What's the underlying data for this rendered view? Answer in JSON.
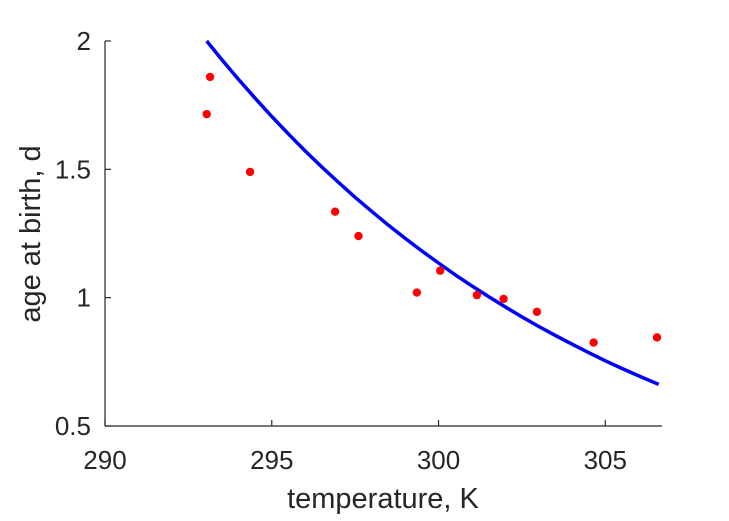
{
  "chart_data": {
    "type": "scatter",
    "title": "",
    "xlabel": "temperature, K",
    "ylabel": "age at birth, d",
    "xlim": [
      290,
      306.7
    ],
    "ylim": [
      0.5,
      2
    ],
    "xticks": [
      290,
      295,
      300,
      305
    ],
    "yticks": [
      0.5,
      1,
      1.5,
      2
    ],
    "xtick_labels": [
      "290",
      "295",
      "300",
      "305"
    ],
    "ytick_labels": [
      "0.5",
      "1",
      "1.5",
      "2"
    ],
    "grid": false,
    "legend": "none",
    "series": [
      {
        "type": "scatter",
        "color": "#ff0000",
        "x": [
          293.05,
          293.15,
          294.35,
          296.9,
          297.6,
          299.35,
          300.05,
          301.15,
          301.95,
          302.95,
          304.65,
          306.55
        ],
        "y": [
          1.715,
          1.86,
          1.49,
          1.335,
          1.24,
          1.02,
          1.105,
          1.01,
          0.995,
          0.945,
          0.825,
          0.845
        ]
      },
      {
        "type": "line",
        "color": "#0000ff",
        "x": [
          293.05,
          293.5,
          294,
          294.5,
          295,
          295.5,
          296,
          296.5,
          297,
          297.5,
          298,
          298.5,
          299,
          299.5,
          300,
          300.5,
          301,
          301.5,
          302,
          302.5,
          303,
          303.5,
          304,
          304.5,
          305,
          305.5,
          306,
          306.6
        ],
        "y": [
          2.0,
          1.928,
          1.851,
          1.777,
          1.706,
          1.638,
          1.572,
          1.509,
          1.449,
          1.391,
          1.336,
          1.282,
          1.231,
          1.182,
          1.135,
          1.089,
          1.046,
          1.004,
          0.964,
          0.925,
          0.888,
          0.853,
          0.819,
          0.786,
          0.754,
          0.724,
          0.695,
          0.662
        ]
      }
    ]
  }
}
